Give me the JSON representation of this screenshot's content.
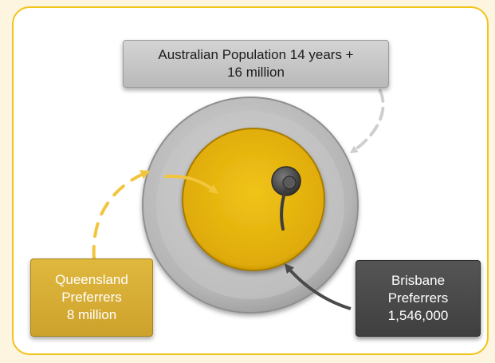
{
  "labels": {
    "australia": {
      "line1": "Australian Population 14 years +",
      "line2": "16 million"
    },
    "queensland": {
      "line1": "Queensland",
      "line2": "Preferrers",
      "line3": "8 million"
    },
    "brisbane": {
      "line1": "Brisbane",
      "line2": "Preferrers",
      "line3": "1,546,000"
    }
  },
  "colors": {
    "frame_border": "#f2c318",
    "outer_ring": "#b3b3b3",
    "queensland": "#e0ae0c",
    "brisbane": "#4d4d4d"
  }
}
